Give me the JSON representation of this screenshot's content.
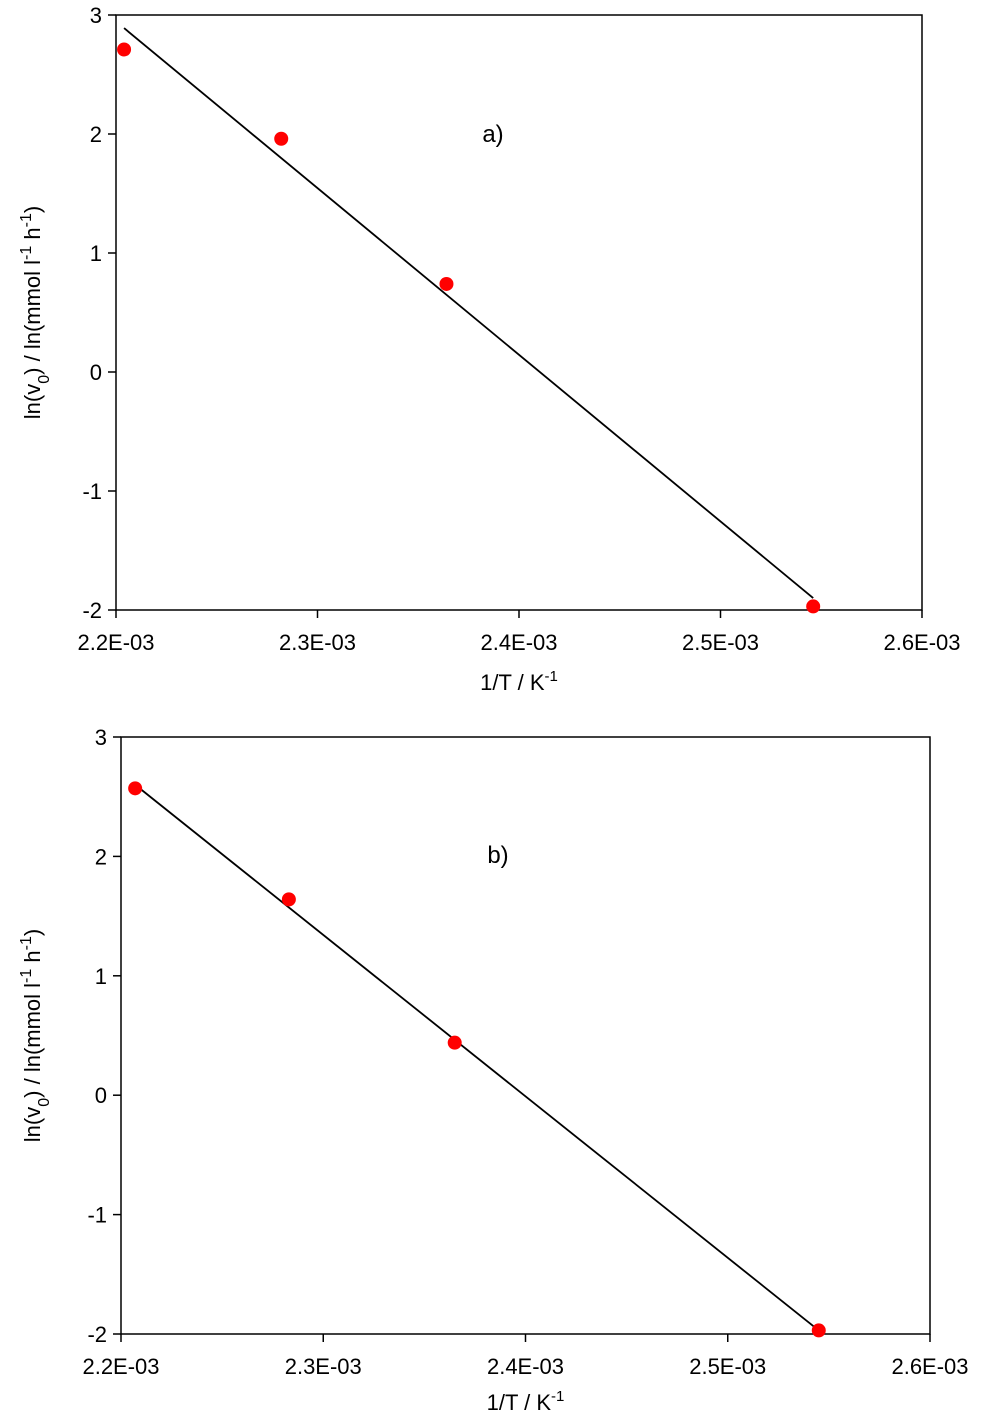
{
  "chart_data": [
    {
      "type": "scatter",
      "panel_label": "a)",
      "xlabel": {
        "text": "1/T / K",
        "sup": "-1"
      },
      "ylabel": {
        "parts": [
          {
            "t": "ln(v",
            "s": 0
          },
          {
            "t": "0",
            "s": -1
          },
          {
            "t": ") / ln(mmol l",
            "s": 0
          },
          {
            "t": "-1",
            "s": 1
          },
          {
            "t": " h",
            "s": 0
          },
          {
            "t": "-1",
            "s": 1
          },
          {
            "t": ")",
            "s": 0
          }
        ]
      },
      "xlim": [
        0.0022,
        0.0026
      ],
      "ylim": [
        -2,
        3
      ],
      "xticks": [
        0.0022,
        0.0023,
        0.0024,
        0.0025,
        0.0026
      ],
      "xtick_labels": [
        "2.2E-03",
        "2.3E-03",
        "2.4E-03",
        "2.5E-03",
        "2.6E-03"
      ],
      "yticks": [
        -2,
        -1,
        0,
        1,
        2,
        3
      ],
      "ytick_labels": [
        "-2",
        "-1",
        "0",
        "1",
        "2",
        "3"
      ],
      "points": [
        {
          "x": 0.002204,
          "y": 2.71
        },
        {
          "x": 0.002282,
          "y": 1.96
        },
        {
          "x": 0.002364,
          "y": 0.74
        },
        {
          "x": 0.002546,
          "y": -1.97
        }
      ],
      "fit_line": [
        {
          "x": 0.002204,
          "y": 2.89
        },
        {
          "x": 0.002546,
          "y": -1.9
        }
      ],
      "marker_color": "#ff0000",
      "line_color": "#000000",
      "grid": false
    },
    {
      "type": "scatter",
      "panel_label": "b)",
      "xlabel": {
        "text": "1/T / K",
        "sup": "-1"
      },
      "ylabel": {
        "parts": [
          {
            "t": "ln(v",
            "s": 0
          },
          {
            "t": "0",
            "s": -1
          },
          {
            "t": ") / ln(mmol l",
            "s": 0
          },
          {
            "t": "-1",
            "s": 1
          },
          {
            "t": " h",
            "s": 0
          },
          {
            "t": "-1",
            "s": 1
          },
          {
            "t": ")",
            "s": 0
          }
        ]
      },
      "xlim": [
        0.0022,
        0.0026
      ],
      "ylim": [
        -2,
        3
      ],
      "xticks": [
        0.0022,
        0.0023,
        0.0024,
        0.0025,
        0.0026
      ],
      "xtick_labels": [
        "2.2E-03",
        "2.3E-03",
        "2.4E-03",
        "2.5E-03",
        "2.6E-03"
      ],
      "yticks": [
        -2,
        -1,
        0,
        1,
        2,
        3
      ],
      "ytick_labels": [
        "-2",
        "-1",
        "0",
        "1",
        "2",
        "3"
      ],
      "points": [
        {
          "x": 0.002207,
          "y": 2.57
        },
        {
          "x": 0.002283,
          "y": 1.64
        },
        {
          "x": 0.002365,
          "y": 0.44
        },
        {
          "x": 0.002545,
          "y": -1.97
        }
      ],
      "fit_line": [
        {
          "x": 0.002207,
          "y": 2.6
        },
        {
          "x": 0.002545,
          "y": -1.97
        }
      ],
      "marker_color": "#ff0000",
      "line_color": "#000000",
      "grid": false
    }
  ]
}
